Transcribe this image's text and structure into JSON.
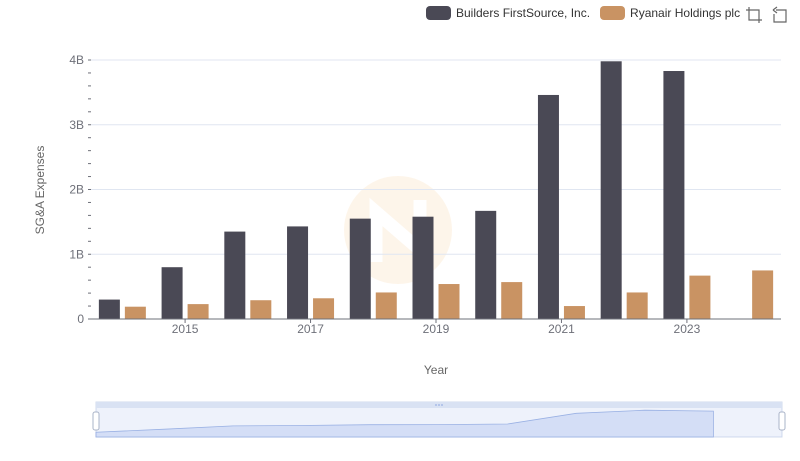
{
  "legend": {
    "items": [
      {
        "label": "Builders FirstSource, Inc.",
        "color": "#4a4955"
      },
      {
        "label": "Ryanair Holdings plc",
        "color": "#c99363"
      }
    ]
  },
  "toolbox": {
    "icons": [
      "zoom-icon",
      "restore-icon"
    ]
  },
  "chart_data": {
    "type": "bar",
    "ylabel": "SG&A Expenses",
    "xlabel": "Year",
    "categories": [
      "2014",
      "2015",
      "2016",
      "2017",
      "2018",
      "2019",
      "2020",
      "2021",
      "2022",
      "2023",
      "2024"
    ],
    "x_tick_labels": [
      "2015",
      "2017",
      "2019",
      "2021",
      "2023"
    ],
    "y_tick_labels": [
      "0",
      "1B",
      "2B",
      "3B",
      "4B"
    ],
    "ylim": [
      0,
      4000000000
    ],
    "grid": true,
    "legend_position": "top-right",
    "series": [
      {
        "name": "Builders FirstSource, Inc.",
        "color": "#4a4955",
        "values": [
          300000000,
          800000000,
          1350000000,
          1430000000,
          1550000000,
          1580000000,
          1670000000,
          3460000000,
          3980000000,
          3830000000,
          null
        ]
      },
      {
        "name": "Ryanair Holdings plc",
        "color": "#c99363",
        "values": [
          190000000,
          230000000,
          290000000,
          320000000,
          410000000,
          540000000,
          570000000,
          200000000,
          410000000,
          670000000,
          750000000
        ]
      }
    ]
  }
}
